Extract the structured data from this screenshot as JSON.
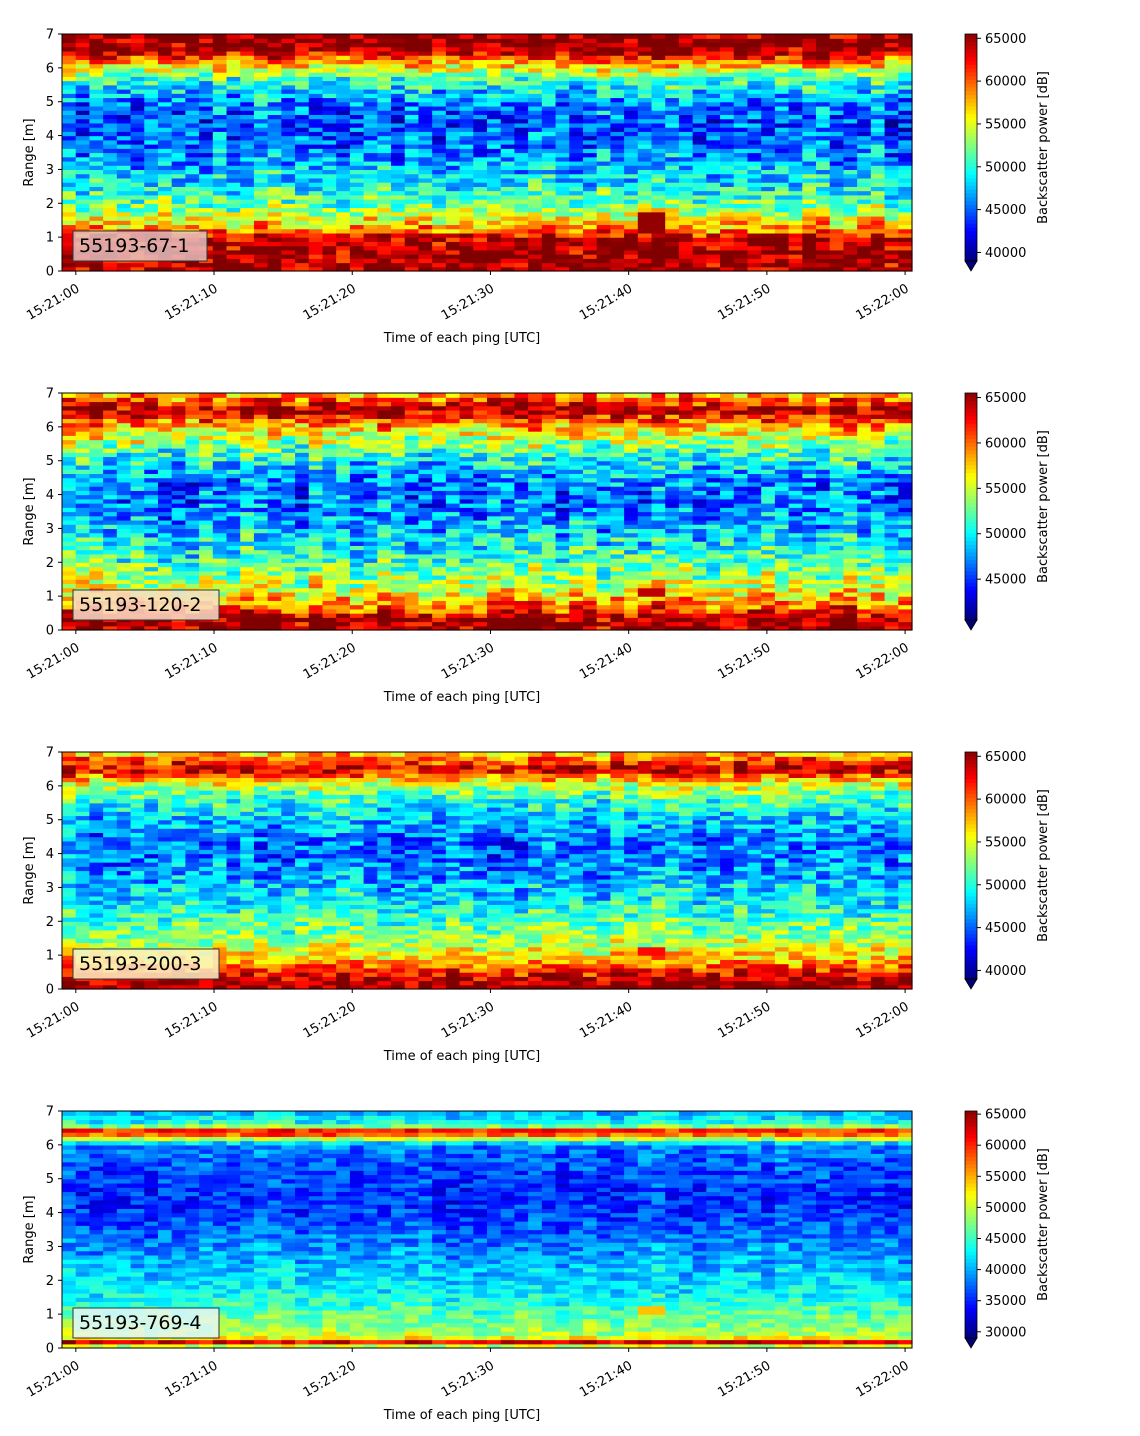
{
  "figure": {
    "type": "echogram-panels"
  },
  "chart_data": [
    {
      "type": "heatmap",
      "label": "55193-67-1",
      "xlabel": "Time of each ping [UTC]",
      "ylabel": "Range [m]",
      "x_ticks": [
        "15:21:00",
        "15:21:10",
        "15:21:20",
        "15:21:30",
        "15:21:40",
        "15:21:50",
        "15:22:00"
      ],
      "xlim": [
        "15:20:59",
        "15:22:00.5"
      ],
      "y_ticks": [
        0,
        1,
        2,
        3,
        4,
        5,
        6,
        7
      ],
      "ylim": [
        0,
        7
      ],
      "colorbar": {
        "label": "Backscatter power [dB]",
        "min": 39000,
        "max": 65500,
        "ticks": [
          40000,
          45000,
          50000,
          55000,
          60000,
          65000
        ],
        "extend": "min"
      },
      "colormap": "jet",
      "profile_range_m": [
        0.25,
        0.6,
        1.0,
        1.2,
        1.8,
        2.5,
        3.5,
        4.3,
        5.0,
        5.7,
        6.1,
        6.5,
        7.0
      ],
      "profile_value": [
        65000,
        65000,
        64000,
        59000,
        53000,
        49000,
        46000,
        44500,
        46000,
        51000,
        57000,
        65000,
        65000
      ],
      "noise_amplitude": 5000,
      "anomalies": [
        {
          "time_start": "15:21:40",
          "time_end": "15:21:42",
          "range": [
            1.1,
            1.7
          ],
          "value": 65000
        }
      ]
    },
    {
      "type": "heatmap",
      "label": "55193-120-2",
      "xlabel": "Time of each ping [UTC]",
      "ylabel": "Range [m]",
      "x_ticks": [
        "15:21:00",
        "15:21:10",
        "15:21:20",
        "15:21:30",
        "15:21:40",
        "15:21:50",
        "15:22:00"
      ],
      "xlim": [
        "15:20:59",
        "15:22:00.5"
      ],
      "y_ticks": [
        0,
        1,
        2,
        3,
        4,
        5,
        6,
        7
      ],
      "ylim": [
        0,
        7
      ],
      "colorbar": {
        "label": "Backscatter power [dB]",
        "min": 40500,
        "max": 65500,
        "ticks": [
          45000,
          50000,
          55000,
          60000,
          65000
        ],
        "extend": "min"
      },
      "colormap": "jet",
      "profile_range_m": [
        0.1,
        0.3,
        0.7,
        1.0,
        1.5,
        2.5,
        3.5,
        4.3,
        5.0,
        5.7,
        6.2,
        6.5,
        7.0
      ],
      "profile_value": [
        65000,
        65000,
        60000,
        57000,
        54000,
        50000,
        47000,
        46500,
        50000,
        55000,
        60000,
        65000,
        58000
      ],
      "noise_amplitude": 5000,
      "anomalies": [
        {
          "time_start": "15:21:40",
          "time_end": "15:21:42",
          "range": [
            1.0,
            1.2
          ],
          "value": 64000
        }
      ]
    },
    {
      "type": "heatmap",
      "label": "55193-200-3",
      "xlabel": "Time of each ping [UTC]",
      "ylabel": "Range [m]",
      "x_ticks": [
        "15:21:00",
        "15:21:10",
        "15:21:20",
        "15:21:30",
        "15:21:40",
        "15:21:50",
        "15:22:00"
      ],
      "xlim": [
        "15:20:59",
        "15:22:00.5"
      ],
      "y_ticks": [
        0,
        1,
        2,
        3,
        4,
        5,
        6,
        7
      ],
      "ylim": [
        0,
        7
      ],
      "colorbar": {
        "label": "Backscatter power [dB]",
        "min": 39000,
        "max": 65500,
        "ticks": [
          40000,
          45000,
          50000,
          55000,
          60000,
          65000
        ],
        "extend": "min"
      },
      "colormap": "jet",
      "profile_range_m": [
        0.1,
        0.3,
        0.7,
        1.0,
        1.5,
        2.5,
        3.5,
        4.3,
        5.0,
        5.7,
        6.1,
        6.5,
        6.85,
        7.0
      ],
      "profile_value": [
        65000,
        64000,
        59000,
        56000,
        53000,
        49000,
        46000,
        45000,
        47000,
        51000,
        55000,
        64000,
        59000,
        56000
      ],
      "noise_amplitude": 4500,
      "anomalies": [
        {
          "time_start": "15:21:40",
          "time_end": "15:21:42",
          "range": [
            1.0,
            1.2
          ],
          "value": 62000
        }
      ]
    },
    {
      "type": "heatmap",
      "label": "55193-769-4",
      "xlabel": "Time of each ping [UTC]",
      "ylabel": "Range [m]",
      "x_ticks": [
        "15:21:00",
        "15:21:10",
        "15:21:20",
        "15:21:30",
        "15:21:40",
        "15:21:50",
        "15:22:00"
      ],
      "xlim": [
        "15:20:59",
        "15:22:00.5"
      ],
      "y_ticks": [
        0,
        1,
        2,
        3,
        4,
        5,
        6,
        7
      ],
      "ylim": [
        0,
        7
      ],
      "colorbar": {
        "label": "Backscatter power [dB]",
        "min": 29000,
        "max": 65500,
        "ticks": [
          30000,
          35000,
          40000,
          45000,
          50000,
          55000,
          60000,
          65000
        ],
        "extend": "min"
      },
      "colormap": "jet",
      "profile_range_m": [
        0.1,
        0.2,
        0.3,
        0.5,
        1.0,
        1.5,
        2.5,
        3.5,
        4.3,
        5.2,
        6.0,
        6.2,
        6.4,
        6.6,
        7.0
      ],
      "profile_value": [
        50000,
        63000,
        52000,
        48000,
        46000,
        43000,
        40000,
        37000,
        35000,
        36000,
        38000,
        50000,
        63000,
        44000,
        40000
      ],
      "noise_amplitude": 4000,
      "anomalies": [
        {
          "time_start": "15:21:40",
          "time_end": "15:21:42",
          "range": [
            1.0,
            1.2
          ],
          "value": 54000
        }
      ]
    }
  ]
}
